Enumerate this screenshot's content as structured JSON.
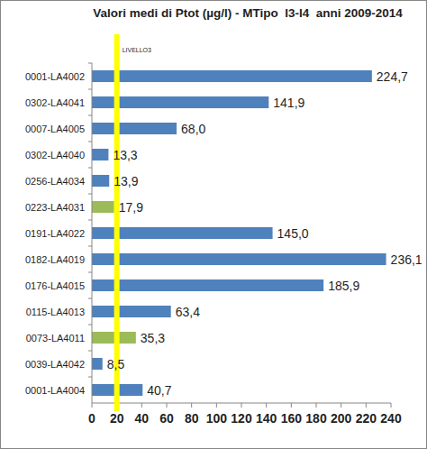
{
  "chart_data": {
    "type": "bar",
    "orientation": "horizontal",
    "title": "Valori medi di Ptot (µg/l) - MTipo  I3-I4  anni 2009-2014",
    "categories": [
      "0001-LA4002",
      "0302-LA4041",
      "0007-LA4005",
      "0302-LA4040",
      "0256-LA4034",
      "0223-LA4031",
      "0191-LA4022",
      "0182-LA4019",
      "0176-LA4015",
      "0115-LA4013",
      "0073-LA4011",
      "0039-LA4042",
      "0001-LA4004"
    ],
    "values": [
      224.7,
      141.9,
      68.0,
      13.3,
      13.9,
      17.9,
      145.0,
      236.1,
      185.9,
      63.4,
      35.3,
      8.5,
      40.7
    ],
    "value_labels": [
      "224,7",
      "141,9",
      "68,0",
      "13,3",
      "13,9",
      "17,9",
      "145,0",
      "236,1",
      "185,9",
      "63,4",
      "35,3",
      "8,5",
      "40,7"
    ],
    "colors": [
      "#4f81bd",
      "#4f81bd",
      "#4f81bd",
      "#4f81bd",
      "#4f81bd",
      "#9bbb59",
      "#4f81bd",
      "#4f81bd",
      "#4f81bd",
      "#4f81bd",
      "#9bbb59",
      "#4f81bd",
      "#4f81bd"
    ],
    "xlim": [
      0,
      240
    ],
    "xticks": [
      0,
      20,
      40,
      60,
      80,
      100,
      120,
      140,
      160,
      180,
      200,
      220,
      240
    ],
    "grid": false,
    "data_labels": true,
    "annotations": [
      {
        "text": "LIVELLO3",
        "x": 20,
        "color": "#ffff00"
      }
    ]
  }
}
